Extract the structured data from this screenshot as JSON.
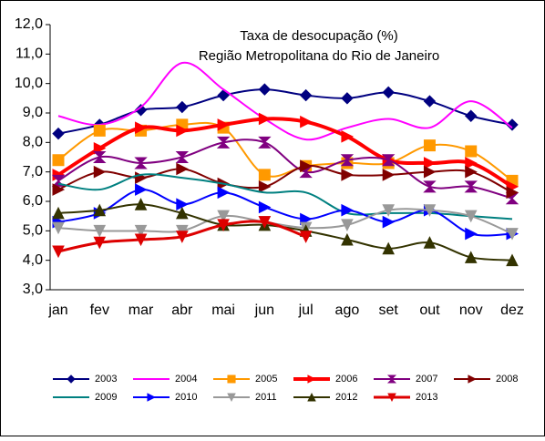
{
  "chart_data": {
    "type": "line",
    "title": "Taxa de desocupação (%)",
    "subtitle": "Região Metropolitana do Rio de Janeiro",
    "categories": [
      "jan",
      "fev",
      "mar",
      "abr",
      "mai",
      "jun",
      "jul",
      "ago",
      "set",
      "out",
      "nov",
      "dez"
    ],
    "ylim": [
      3,
      12
    ],
    "yticks": [
      {
        "value": 3,
        "label": "3,0"
      },
      {
        "value": 4,
        "label": "4,0"
      },
      {
        "value": 5,
        "label": "5,0"
      },
      {
        "value": 6,
        "label": "6,0"
      },
      {
        "value": 7,
        "label": "7,0"
      },
      {
        "value": 8,
        "label": "8,0"
      },
      {
        "value": 9,
        "label": "9,0"
      },
      {
        "value": 10,
        "label": "10,0"
      },
      {
        "value": 11,
        "label": "11,0"
      },
      {
        "value": 12,
        "label": "12,0"
      }
    ],
    "grid": false,
    "series": [
      {
        "name": "2003",
        "color": "#000080",
        "marker": "diamond",
        "width": 2,
        "values": [
          8.3,
          8.6,
          9.1,
          9.2,
          9.6,
          9.8,
          9.6,
          9.5,
          9.7,
          9.4,
          8.9,
          8.6
        ]
      },
      {
        "name": "2004",
        "color": "#ff00ff",
        "marker": "none",
        "width": 2,
        "values": [
          8.9,
          8.6,
          9.2,
          10.7,
          9.8,
          8.8,
          8.1,
          8.5,
          8.8,
          8.5,
          9.4,
          8.5
        ]
      },
      {
        "name": "2005",
        "color": "#ff9900",
        "marker": "square",
        "width": 2,
        "values": [
          7.4,
          8.4,
          8.4,
          8.6,
          8.5,
          6.9,
          7.2,
          7.3,
          7.3,
          7.9,
          7.7,
          6.7
        ]
      },
      {
        "name": "2006",
        "color": "#ff0000",
        "marker": "arrow",
        "width": 4,
        "values": [
          6.9,
          7.8,
          8.5,
          8.4,
          8.6,
          8.8,
          8.7,
          8.2,
          7.4,
          7.3,
          7.3,
          6.5
        ]
      },
      {
        "name": "2007",
        "color": "#800080",
        "marker": "hourglass",
        "width": 2,
        "values": [
          6.7,
          7.5,
          7.3,
          7.5,
          8.0,
          8.0,
          7.0,
          7.4,
          7.4,
          6.5,
          6.5,
          6.1
        ]
      },
      {
        "name": "2008",
        "color": "#800000",
        "marker": "arrow",
        "width": 2,
        "values": [
          6.4,
          7.0,
          6.8,
          7.1,
          6.6,
          6.5,
          7.2,
          6.9,
          6.9,
          7.0,
          7.0,
          6.3
        ]
      },
      {
        "name": "2009",
        "color": "#008080",
        "marker": "none",
        "width": 2,
        "values": [
          6.6,
          6.4,
          6.9,
          6.8,
          6.6,
          6.3,
          6.3,
          5.6,
          5.6,
          5.6,
          5.5,
          5.4
        ]
      },
      {
        "name": "2010",
        "color": "#0000ff",
        "marker": "arrow",
        "width": 2,
        "values": [
          5.3,
          5.6,
          6.4,
          5.9,
          6.3,
          5.8,
          5.4,
          5.7,
          5.3,
          5.7,
          4.9,
          4.9
        ]
      },
      {
        "name": "2011",
        "color": "#999999",
        "marker": "down",
        "width": 2,
        "values": [
          5.1,
          5.0,
          5.0,
          5.0,
          5.5,
          5.3,
          5.1,
          5.2,
          5.7,
          5.7,
          5.5,
          4.9
        ]
      },
      {
        "name": "2012",
        "color": "#333300",
        "marker": "up",
        "width": 2,
        "values": [
          5.6,
          5.7,
          5.9,
          5.6,
          5.2,
          5.2,
          5.0,
          4.7,
          4.4,
          4.6,
          4.1,
          4.0
        ]
      },
      {
        "name": "2013",
        "color": "#dd0000",
        "marker": "down",
        "width": 3,
        "values": [
          4.3,
          4.6,
          4.7,
          4.8,
          5.2,
          5.3,
          4.8,
          null,
          null,
          null,
          null,
          null
        ]
      }
    ]
  }
}
